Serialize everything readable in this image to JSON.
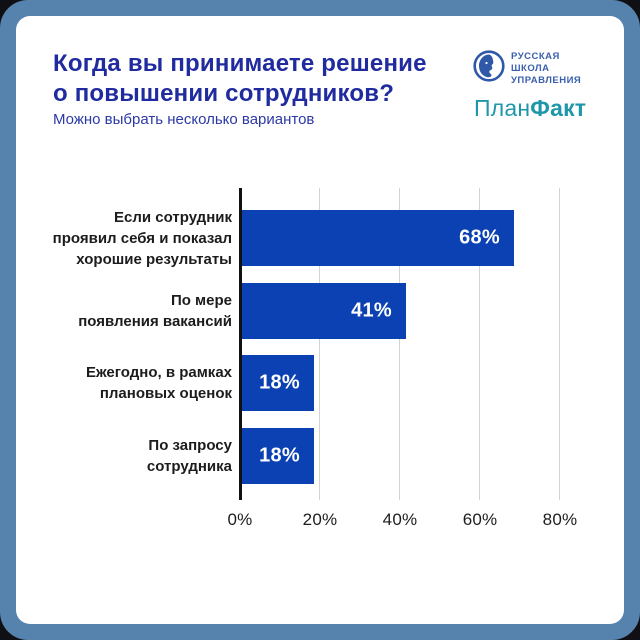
{
  "page": {
    "outer_bg": "#101014",
    "frame_color": "#5583ad",
    "card_bg": "#ffffff"
  },
  "header": {
    "title_line1": "Когда вы принимаете решение",
    "title_line2": "о повышении сотрудников?",
    "title_color": "#1f2b9e",
    "subtitle": "Можно выбрать несколько вариантов",
    "subtitle_color": "#2c39a6"
  },
  "branding": {
    "rsu_logo": {
      "line1": "РУССКАЯ",
      "line2": "ШКОЛА",
      "line3": "УПРАВЛЕНИЯ",
      "color": "#3a5fae"
    },
    "planfact_logo": {
      "part1": "План",
      "part2": "Факт",
      "color": "#1f97aa"
    }
  },
  "chart_data": {
    "type": "bar",
    "orientation": "horizontal",
    "title": "Когда вы принимаете решение о повышении сотрудников?",
    "subtitle": "Можно выбрать несколько вариантов",
    "categories": [
      "Если сотрудник проявил себя и показал хорошие результаты",
      "По мере появления вакансий",
      "Ежегодно, в рамках плановых оценок",
      "По запросу сотрудника"
    ],
    "values": [
      68,
      41,
      18,
      18
    ],
    "rows": [
      {
        "label_lines": [
          "Если сотрудник",
          "проявил себя и показал",
          "хорошие результаты"
        ],
        "value": 68,
        "value_label": "68%"
      },
      {
        "label_lines": [
          "По мере",
          "появления вакансий"
        ],
        "value": 41,
        "value_label": "41%"
      },
      {
        "label_lines": [
          "Ежегодно, в рамках",
          "плановых оценок"
        ],
        "value": 18,
        "value_label": "18%"
      },
      {
        "label_lines": [
          "По запросу",
          "сотрудника"
        ],
        "value": 18,
        "value_label": "18%"
      }
    ],
    "x_ticks": [
      {
        "value": 0,
        "label": "0%"
      },
      {
        "value": 20,
        "label": "20%"
      },
      {
        "value": 40,
        "label": "40%"
      },
      {
        "value": 60,
        "label": "60%"
      },
      {
        "value": 80,
        "label": "80%"
      }
    ],
    "xlim": [
      0,
      90
    ],
    "xlabel": "",
    "ylabel": "",
    "grid": true,
    "legend": null,
    "bar_color": "#0c41b4",
    "value_label_color": "#ffffff",
    "gridline_color": "#d3d3d3",
    "axis_color": "#111111"
  }
}
